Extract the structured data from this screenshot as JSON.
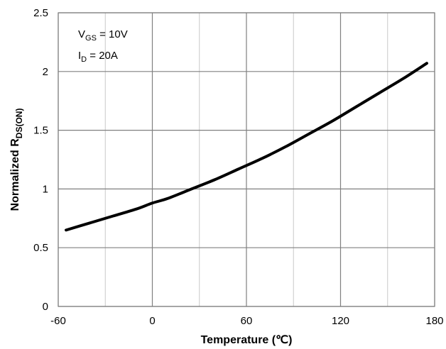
{
  "chart_data": {
    "type": "line",
    "title": "",
    "xlabel": "Temperature (℃)",
    "ylabel": {
      "main": "Normalized R",
      "subscript": "DS(ON)"
    },
    "xlim": [
      -60,
      180
    ],
    "ylim": [
      0,
      2.5
    ],
    "x_ticks": [
      -60,
      0,
      60,
      120,
      180
    ],
    "x_tick_labels": [
      "-60",
      "0",
      "60",
      "120",
      "180"
    ],
    "x_minor_grid": [
      -30,
      30,
      90,
      150
    ],
    "y_ticks": [
      0,
      0.5,
      1,
      1.5,
      2,
      2.5
    ],
    "y_tick_labels": [
      "0",
      "0.5",
      "1",
      "1.5",
      "2",
      "2.5"
    ],
    "grid": true,
    "legend": "none",
    "annotations": [
      {
        "main": "V",
        "subscript": "GS",
        "rest": " = 10V"
      },
      {
        "main": "I",
        "subscript": "D",
        "rest": " = 20A"
      }
    ],
    "series": [
      {
        "name": "Normalized RDS(ON)",
        "x": [
          -55,
          -40,
          -25,
          -10,
          0,
          10,
          25,
          40,
          55,
          70,
          85,
          100,
          115,
          130,
          145,
          160,
          175
        ],
        "y": [
          0.65,
          0.71,
          0.77,
          0.83,
          0.88,
          0.92,
          1.0,
          1.08,
          1.17,
          1.26,
          1.36,
          1.47,
          1.58,
          1.7,
          1.82,
          1.94,
          2.07
        ]
      }
    ]
  },
  "colors": {
    "major_grid": "#808080",
    "minor_grid": "#c8c8c8",
    "frame": "#808080",
    "line": "#000000",
    "text": "#000000"
  }
}
